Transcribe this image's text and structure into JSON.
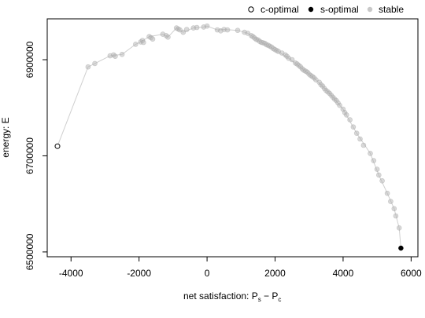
{
  "chart_data": {
    "type": "scatter",
    "xlabel": "net satisfaction: P",
    "xlabel_sub1": "s",
    "xlabel_minus": " − P",
    "xlabel_sub2": "c",
    "ylabel": "energy: E",
    "xlim": [
      -4700,
      6200
    ],
    "ylim": [
      6490000,
      6985000
    ],
    "x_ticks": [
      -4000,
      -2000,
      0,
      2000,
      4000,
      6000
    ],
    "x_tick_labels": [
      "-4000",
      "-2000",
      "0",
      "2000",
      "4000",
      "6000"
    ],
    "y_ticks": [
      6500000,
      6700000,
      6900000
    ],
    "y_tick_labels": [
      "6500000",
      "6700000",
      "6900000"
    ],
    "grid": false,
    "legend_position": "top-right",
    "legend": [
      {
        "label": "c-optimal",
        "marker": "open-circle",
        "color": "#000000"
      },
      {
        "label": "s-optimal",
        "marker": "filled-circle",
        "color": "#000000"
      },
      {
        "label": "stable",
        "marker": "filled-circle",
        "color": "#c8c8c8"
      }
    ],
    "series": [
      {
        "name": "c-optimal",
        "points": [
          [
            -4400,
            6720000
          ]
        ]
      },
      {
        "name": "s-optimal",
        "points": [
          [
            5700,
            6508000
          ]
        ]
      },
      {
        "name": "stable",
        "points": [
          [
            -3500,
            6885000
          ],
          [
            -3300,
            6892000
          ],
          [
            -2850,
            6908000
          ],
          [
            -2750,
            6910000
          ],
          [
            -2700,
            6907000
          ],
          [
            -2500,
            6911000
          ],
          [
            -2100,
            6932000
          ],
          [
            -1950,
            6937000
          ],
          [
            -1900,
            6940000
          ],
          [
            -1870,
            6936000
          ],
          [
            -1700,
            6948000
          ],
          [
            -1650,
            6946000
          ],
          [
            -1600,
            6943000
          ],
          [
            -1300,
            6953000
          ],
          [
            -1200,
            6950000
          ],
          [
            -1150,
            6947000
          ],
          [
            -900,
            6966000
          ],
          [
            -850,
            6964000
          ],
          [
            -800,
            6962000
          ],
          [
            -700,
            6957000
          ],
          [
            -600,
            6963000
          ],
          [
            -400,
            6966000
          ],
          [
            -300,
            6967000
          ],
          [
            -100,
            6968000
          ],
          [
            0,
            6970000
          ],
          [
            300,
            6962000
          ],
          [
            400,
            6960000
          ],
          [
            500,
            6963000
          ],
          [
            600,
            6962000
          ],
          [
            900,
            6961000
          ],
          [
            1100,
            6957000
          ],
          [
            1200,
            6955000
          ],
          [
            1300,
            6950000
          ],
          [
            1350,
            6948000
          ],
          [
            1400,
            6945000
          ],
          [
            1450,
            6942000
          ],
          [
            1500,
            6941000
          ],
          [
            1550,
            6938000
          ],
          [
            1600,
            6936000
          ],
          [
            1650,
            6935000
          ],
          [
            1700,
            6934000
          ],
          [
            1750,
            6931000
          ],
          [
            1800,
            6930000
          ],
          [
            1850,
            6928000
          ],
          [
            1900,
            6926000
          ],
          [
            1950,
            6923000
          ],
          [
            2000,
            6921000
          ],
          [
            2050,
            6919000
          ],
          [
            2100,
            6917000
          ],
          [
            2200,
            6914000
          ],
          [
            2300,
            6910000
          ],
          [
            2350,
            6907000
          ],
          [
            2400,
            6903000
          ],
          [
            2500,
            6900000
          ],
          [
            2600,
            6893000
          ],
          [
            2650,
            6891000
          ],
          [
            2700,
            6888000
          ],
          [
            2750,
            6885000
          ],
          [
            2800,
            6881000
          ],
          [
            2850,
            6878000
          ],
          [
            2900,
            6876000
          ],
          [
            2950,
            6874000
          ],
          [
            3000,
            6870000
          ],
          [
            3050,
            6867000
          ],
          [
            3100,
            6865000
          ],
          [
            3150,
            6862000
          ],
          [
            3200,
            6858000
          ],
          [
            3300,
            6853000
          ],
          [
            3350,
            6848000
          ],
          [
            3400,
            6845000
          ],
          [
            3450,
            6840000
          ],
          [
            3500,
            6836000
          ],
          [
            3550,
            6833000
          ],
          [
            3600,
            6830000
          ],
          [
            3650,
            6826000
          ],
          [
            3700,
            6822000
          ],
          [
            3750,
            6818000
          ],
          [
            3800,
            6815000
          ],
          [
            3850,
            6810000
          ],
          [
            3900,
            6805000
          ],
          [
            4000,
            6797000
          ],
          [
            4050,
            6790000
          ],
          [
            4100,
            6785000
          ],
          [
            4200,
            6775000
          ],
          [
            4300,
            6760000
          ],
          [
            4400,
            6747000
          ],
          [
            4500,
            6735000
          ],
          [
            4600,
            6722000
          ],
          [
            4800,
            6705000
          ],
          [
            4900,
            6690000
          ],
          [
            5000,
            6672000
          ],
          [
            5050,
            6660000
          ],
          [
            5150,
            6648000
          ],
          [
            5300,
            6622000
          ],
          [
            5400,
            6605000
          ],
          [
            5500,
            6590000
          ],
          [
            5550,
            6575000
          ],
          [
            5650,
            6550000
          ]
        ]
      }
    ],
    "frontier": [
      [
        -4400,
        6720000
      ],
      [
        -3500,
        6885000
      ],
      [
        -3300,
        6892000
      ],
      [
        -2850,
        6908000
      ],
      [
        -2500,
        6911000
      ],
      [
        -2100,
        6932000
      ],
      [
        -1950,
        6937000
      ],
      [
        -1700,
        6948000
      ],
      [
        -1300,
        6953000
      ],
      [
        -1150,
        6947000
      ],
      [
        -900,
        6966000
      ],
      [
        -700,
        6957000
      ],
      [
        -400,
        6966000
      ],
      [
        -100,
        6968000
      ],
      [
        0,
        6970000
      ],
      [
        300,
        6962000
      ],
      [
        500,
        6963000
      ],
      [
        900,
        6961000
      ],
      [
        1200,
        6955000
      ],
      [
        1600,
        6936000
      ],
      [
        2000,
        6921000
      ],
      [
        2400,
        6903000
      ],
      [
        2800,
        6881000
      ],
      [
        3200,
        6858000
      ],
      [
        3600,
        6830000
      ],
      [
        4000,
        6797000
      ],
      [
        4400,
        6747000
      ],
      [
        4800,
        6705000
      ],
      [
        5050,
        6660000
      ],
      [
        5300,
        6622000
      ],
      [
        5500,
        6590000
      ],
      [
        5650,
        6550000
      ],
      [
        5700,
        6508000
      ]
    ]
  }
}
